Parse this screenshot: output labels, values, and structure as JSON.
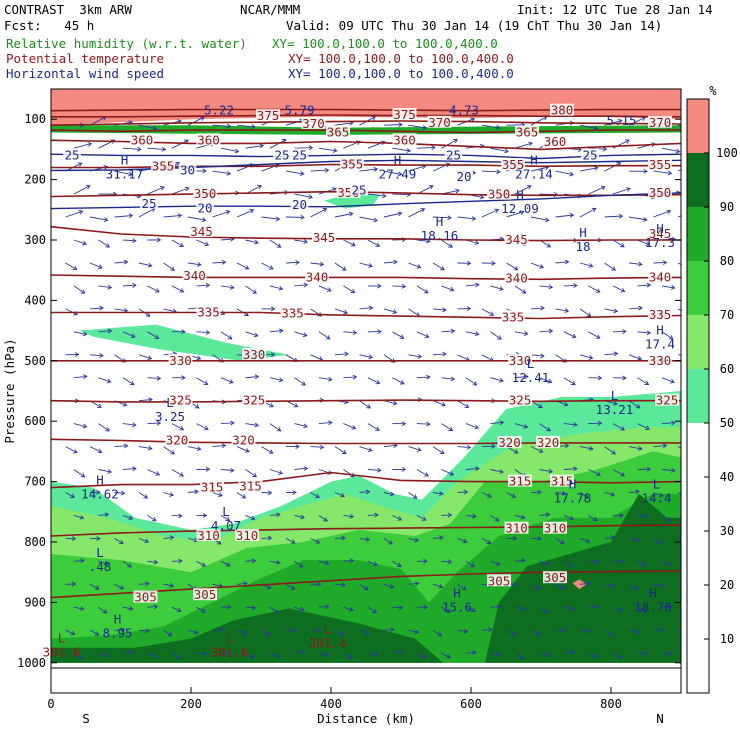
{
  "header": {
    "model": "CONTRAST  3km ARW",
    "org": "NCAR/MMM",
    "init": "Init: 12 UTC Tue 28 Jan 14",
    "fcst": "Fcst:   45 h",
    "valid": "Valid: 09 UTC Thu 30 Jan 14 (19 ChT Thu 30 Jan 14)"
  },
  "fields": [
    {
      "name": "Relative humidity (w.r.t. water)",
      "xy": "XY= 100.0,100.0 to 100.0,400.0",
      "color": "#1e8c1e"
    },
    {
      "name": "Potential temperature",
      "xy": "XY= 100.0,100.0 to 100.0,400.0",
      "color": "#8b1a1a"
    },
    {
      "name": "Horizontal wind speed",
      "xy": "XY= 100.0,100.0 to 100.0,400.0",
      "color": "#1a2a8a"
    }
  ],
  "chart_data": {
    "type": "contour-cross-section",
    "xlabel": "Distance (km)",
    "ylabel": "Pressure (hPa)",
    "xlim": [
      0,
      900
    ],
    "ylim": [
      1050,
      50
    ],
    "x_ticks": [
      0,
      200,
      400,
      600,
      800
    ],
    "y_ticks": [
      100,
      200,
      300,
      400,
      500,
      600,
      700,
      800,
      900,
      1000
    ],
    "end_labels": {
      "left": "S",
      "right": "N"
    },
    "colorbar": {
      "unit": "%",
      "ticks": [
        10,
        20,
        30,
        40,
        50,
        60,
        70,
        80,
        90,
        100
      ],
      "bands": [
        {
          "from": 50,
          "to": 60,
          "color": "#5be89a"
        },
        {
          "from": 60,
          "to": 70,
          "color": "#86e86a"
        },
        {
          "from": 70,
          "to": 80,
          "color": "#3ccc3c"
        },
        {
          "from": 80,
          "to": 90,
          "color": "#1faa2a"
        },
        {
          "from": 90,
          "to": 100,
          "color": "#0d6e1f"
        },
        {
          "from": 100,
          "to": 110,
          "color": "#f58a80"
        }
      ]
    },
    "theta_contours": [
      {
        "value": 305,
        "p": [
          892,
          885,
          878,
          871,
          864,
          857,
          853,
          850,
          849,
          848
        ]
      },
      {
        "value": 310,
        "p": [
          790,
          785,
          782,
          780,
          778,
          777,
          776,
          775,
          773,
          772
        ]
      },
      {
        "value": 315,
        "p": [
          710,
          705,
          705,
          700,
          685,
          698,
          700,
          700,
          702,
          700
        ]
      },
      {
        "value": 320,
        "p": [
          630,
          632,
          635,
          636,
          637,
          637,
          637,
          636,
          636,
          636
        ]
      },
      {
        "value": 325,
        "p": [
          566,
          568,
          568,
          567,
          566,
          565,
          566,
          567,
          566,
          566
        ]
      },
      {
        "value": 330,
        "p": [
          500,
          500,
          500,
          500,
          500,
          500,
          500,
          500,
          500,
          500
        ]
      },
      {
        "value": 335,
        "p": [
          420,
          420,
          420,
          420,
          424,
          426,
          428,
          430,
          427,
          425
        ]
      },
      {
        "value": 340,
        "p": [
          358,
          360,
          362,
          362,
          362,
          362,
          364,
          365,
          363,
          362
        ]
      },
      {
        "value": 345,
        "p": [
          278,
          290,
          295,
          297,
          298,
          298,
          300,
          301,
          300,
          300
        ]
      },
      {
        "value": 350,
        "p": [
          228,
          226,
          224,
          222,
          220,
          222,
          225,
          226,
          226,
          225
        ]
      },
      {
        "value": 355,
        "p": [
          180,
          180,
          178,
          178,
          175,
          176,
          176,
          178,
          177,
          177
        ]
      },
      {
        "value": 360,
        "p": [
          135,
          137,
          140,
          140,
          137,
          140,
          145,
          150,
          145,
          140
        ]
      },
      {
        "value": 365,
        "p": [
          118,
          120,
          118,
          118,
          118,
          120,
          122,
          120,
          118,
          118
        ]
      },
      {
        "value": 370,
        "p": [
          110,
          108,
          106,
          105,
          104,
          103,
          104,
          106,
          107,
          108
        ]
      },
      {
        "value": 375,
        "p": [
          96,
          96,
          95,
          94,
          93,
          94,
          94,
          95,
          95,
          96
        ]
      },
      {
        "value": 380,
        "p": [
          86,
          85,
          84,
          84,
          84,
          85,
          86,
          85,
          84,
          84
        ]
      }
    ],
    "wind_contours": [
      {
        "value": 20,
        "p": [
          248,
          246,
          244,
          244,
          245,
          240,
          236,
          232,
          226,
          222
        ]
      },
      {
        "value": 25,
        "p": [
          158,
          160,
          160,
          162,
          160,
          158,
          160,
          165,
          160,
          158
        ]
      },
      {
        "value": 30,
        "p": [
          185,
          184,
          180,
          175,
          170,
          168,
          170,
          172,
          170,
          168
        ]
      }
    ],
    "theta_labels": [
      {
        "text": "305",
        "x": 135,
        "p": 892
      },
      {
        "text": "305",
        "x": 220,
        "p": 888
      },
      {
        "text": "305",
        "x": 640,
        "p": 865
      },
      {
        "text": "305",
        "x": 720,
        "p": 860
      },
      {
        "text": "310",
        "x": 225,
        "p": 790
      },
      {
        "text": "310",
        "x": 280,
        "p": 790
      },
      {
        "text": "310",
        "x": 665,
        "p": 778
      },
      {
        "text": "310",
        "x": 720,
        "p": 778
      },
      {
        "text": "315",
        "x": 230,
        "p": 710
      },
      {
        "text": "315",
        "x": 285,
        "p": 708
      },
      {
        "text": "315",
        "x": 670,
        "p": 700
      },
      {
        "text": "315",
        "x": 730,
        "p": 700
      },
      {
        "text": "320",
        "x": 180,
        "p": 632
      },
      {
        "text": "320",
        "x": 275,
        "p": 632
      },
      {
        "text": "320",
        "x": 655,
        "p": 636
      },
      {
        "text": "320",
        "x": 710,
        "p": 636
      },
      {
        "text": "325",
        "x": 185,
        "p": 566
      },
      {
        "text": "325",
        "x": 290,
        "p": 566
      },
      {
        "text": "325",
        "x": 670,
        "p": 566
      },
      {
        "text": "325",
        "x": 880,
        "p": 566
      },
      {
        "text": "330",
        "x": 185,
        "p": 500
      },
      {
        "text": "330",
        "x": 290,
        "p": 490
      },
      {
        "text": "330",
        "x": 670,
        "p": 500
      },
      {
        "text": "330",
        "x": 870,
        "p": 500
      },
      {
        "text": "335",
        "x": 225,
        "p": 420
      },
      {
        "text": "335",
        "x": 345,
        "p": 422
      },
      {
        "text": "335",
        "x": 660,
        "p": 428
      },
      {
        "text": "335",
        "x": 870,
        "p": 424
      },
      {
        "text": "340",
        "x": 205,
        "p": 360
      },
      {
        "text": "340",
        "x": 380,
        "p": 362
      },
      {
        "text": "340",
        "x": 665,
        "p": 364
      },
      {
        "text": "340",
        "x": 870,
        "p": 362
      },
      {
        "text": "345",
        "x": 215,
        "p": 287
      },
      {
        "text": "345",
        "x": 390,
        "p": 297
      },
      {
        "text": "345",
        "x": 665,
        "p": 300
      },
      {
        "text": "345",
        "x": 870,
        "p": 290
      },
      {
        "text": "350",
        "x": 220,
        "p": 224
      },
      {
        "text": "350",
        "x": 425,
        "p": 222
      },
      {
        "text": "350",
        "x": 640,
        "p": 225
      },
      {
        "text": "350",
        "x": 870,
        "p": 222
      },
      {
        "text": "355",
        "x": 160,
        "p": 178
      },
      {
        "text": "355",
        "x": 430,
        "p": 175
      },
      {
        "text": "355",
        "x": 660,
        "p": 176
      },
      {
        "text": "355",
        "x": 870,
        "p": 176
      },
      {
        "text": "360",
        "x": 130,
        "p": 135
      },
      {
        "text": "360",
        "x": 225,
        "p": 135
      },
      {
        "text": "360",
        "x": 505,
        "p": 135
      },
      {
        "text": "360",
        "x": 720,
        "p": 138
      },
      {
        "text": "365",
        "x": 410,
        "p": 122
      },
      {
        "text": "365",
        "x": 680,
        "p": 122
      },
      {
        "text": "370",
        "x": 375,
        "p": 108
      },
      {
        "text": "370",
        "x": 555,
        "p": 106
      },
      {
        "text": "370",
        "x": 870,
        "p": 106
      },
      {
        "text": "375",
        "x": 310,
        "p": 95
      },
      {
        "text": "375",
        "x": 505,
        "p": 93
      },
      {
        "text": "380",
        "x": 730,
        "p": 86
      }
    ],
    "wind_labels": [
      {
        "text": "20",
        "x": 220,
        "p": 248
      },
      {
        "text": "20",
        "x": 355,
        "p": 242
      },
      {
        "text": "20",
        "x": 590,
        "p": 196
      },
      {
        "text": "25",
        "x": 30,
        "p": 160
      },
      {
        "text": "25",
        "x": 140,
        "p": 240
      },
      {
        "text": "25",
        "x": 330,
        "p": 160
      },
      {
        "text": "25",
        "x": 355,
        "p": 160
      },
      {
        "text": "25",
        "x": 440,
        "p": 218
      },
      {
        "text": "25",
        "x": 575,
        "p": 160
      },
      {
        "text": "25",
        "x": 770,
        "p": 160
      },
      {
        "text": "30",
        "x": 195,
        "p": 185
      }
    ],
    "extrema": [
      {
        "mark": "H",
        "value": "14.62",
        "x": 70,
        "p": 718
      },
      {
        "mark": "L",
        "value": "4.07",
        "x": 250,
        "p": 770
      },
      {
        "mark": "L",
        "value": ".48",
        "x": 70,
        "p": 838
      },
      {
        "mark": "H",
        "value": "8.95",
        "x": 95,
        "p": 948
      },
      {
        "mark": "L",
        "value": "301.6",
        "x": 15,
        "p": 980
      },
      {
        "mark": "L",
        "value": "301.6",
        "x": 255,
        "p": 980
      },
      {
        "mark": "L",
        "value": "301.4",
        "x": 395,
        "p": 965
      },
      {
        "mark": "L",
        "value": "3.25",
        "x": 170,
        "p": 590
      },
      {
        "mark": "H",
        "value": "18.16",
        "x": 555,
        "p": 290
      },
      {
        "mark": "H",
        "value": "18",
        "x": 760,
        "p": 308
      },
      {
        "mark": "H",
        "value": "17.3",
        "x": 870,
        "p": 302
      },
      {
        "mark": "H",
        "value": "12.09",
        "x": 670,
        "p": 245
      },
      {
        "mark": "H",
        "value": "27.49",
        "x": 495,
        "p": 188
      },
      {
        "mark": "H",
        "value": "27.14",
        "x": 690,
        "p": 188
      },
      {
        "mark": "H",
        "value": "31.17",
        "x": 105,
        "p": 188
      },
      {
        "mark": "L",
        "value": "12.41",
        "x": 685,
        "p": 525
      },
      {
        "mark": "L",
        "value": "13.21",
        "x": 805,
        "p": 578
      },
      {
        "mark": "H",
        "value": "17.4",
        "x": 870,
        "p": 470
      },
      {
        "mark": "H",
        "value": "17.78",
        "x": 745,
        "p": 725
      },
      {
        "mark": "L",
        "value": "14.4",
        "x": 865,
        "p": 725
      },
      {
        "mark": "H",
        "value": "15.6",
        "x": 580,
        "p": 905
      },
      {
        "mark": "H",
        "value": "18.76",
        "x": 860,
        "p": 905
      },
      {
        "mark": "",
        "value": "5.22",
        "x": 240,
        "p": 82
      },
      {
        "mark": "",
        "value": "5.79",
        "x": 355,
        "p": 82
      },
      {
        "mark": "",
        "value": "4.73",
        "x": 590,
        "p": 82
      },
      {
        "mark": "",
        "value": "5.15",
        "x": 815,
        "p": 100
      }
    ]
  }
}
